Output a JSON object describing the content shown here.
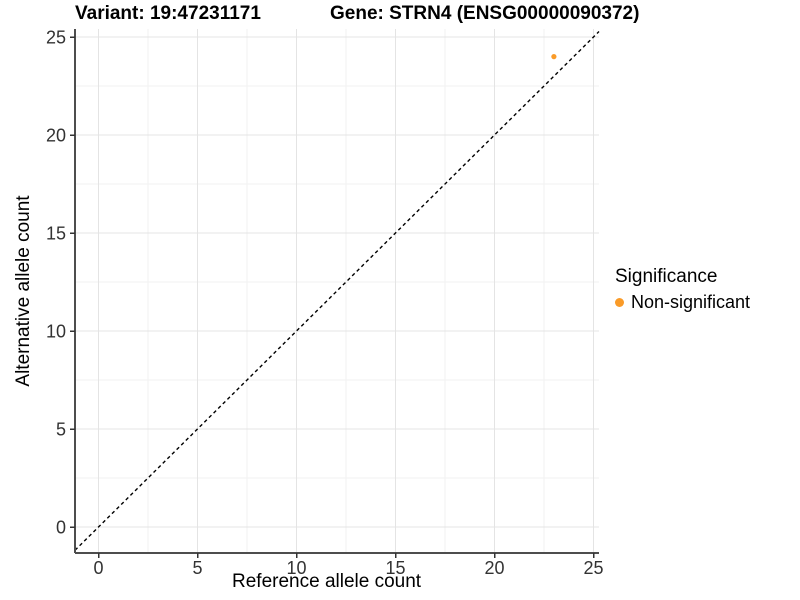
{
  "header": {
    "title_left": "Variant: 19:47231171",
    "title_right": "Gene: STRN4 (ENSG00000090372)"
  },
  "axes": {
    "x_label": "Reference allele count",
    "y_label": "Alternative allele count"
  },
  "legend": {
    "title": "Significance",
    "items": [
      {
        "label": "Non-significant",
        "color": "#FA9B28"
      }
    ]
  },
  "chart_data": {
    "type": "scatter",
    "title_left": "Variant: 19:47231171",
    "title_right": "Gene: STRN4 (ENSG00000090372)",
    "xlabel": "Reference allele count",
    "ylabel": "Alternative allele count",
    "x_ticks": [
      0,
      5,
      10,
      15,
      20,
      25
    ],
    "y_ticks": [
      0,
      5,
      10,
      15,
      20,
      25
    ],
    "xlim": [
      -1.2,
      25.3
    ],
    "ylim": [
      -1.2,
      25.4
    ],
    "grid": {
      "major": true,
      "minor": true
    },
    "legend_position": "right",
    "series": [
      {
        "name": "Non-significant",
        "color": "#FA9B28",
        "points": [
          {
            "x": 23,
            "y": 24
          }
        ]
      }
    ],
    "reference_line": {
      "type": "identity y=x",
      "style": "dashed",
      "color": "#000000"
    }
  },
  "colors": {
    "background": "#FFFFFF",
    "axis_line": "#4D4D4D",
    "tick_mark": "#333333",
    "tick_label": "#333333",
    "grid_major": "#E4E4E4",
    "grid_minor": "#F2F2F2"
  }
}
